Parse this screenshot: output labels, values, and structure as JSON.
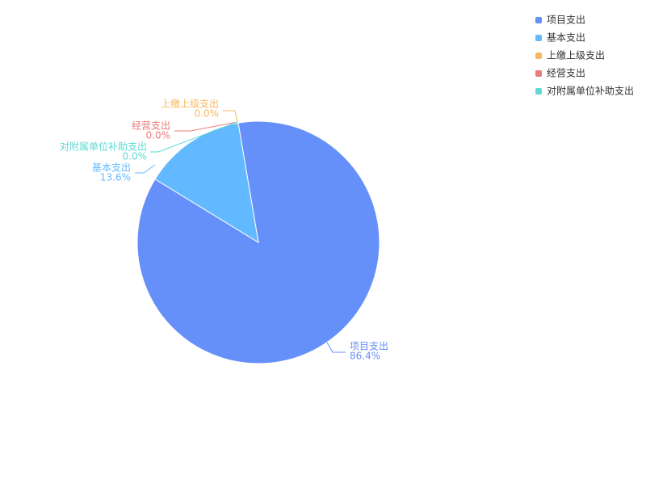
{
  "chart_data": {
    "type": "pie",
    "categories": [
      "项目支出",
      "基本支出",
      "上缴上级支出",
      "经营支出",
      "对附属单位补助支出"
    ],
    "values": [
      86.4,
      13.6,
      0.0,
      0.0,
      0.0
    ],
    "value_labels": [
      "86.4%",
      "13.6%",
      "0.0%",
      "0.0%",
      "0.0%"
    ],
    "colors": [
      "#6690f9",
      "#62b9ff",
      "#f7b961",
      "#ee7b7b",
      "#5fd9d3"
    ],
    "legend": "top-right"
  }
}
